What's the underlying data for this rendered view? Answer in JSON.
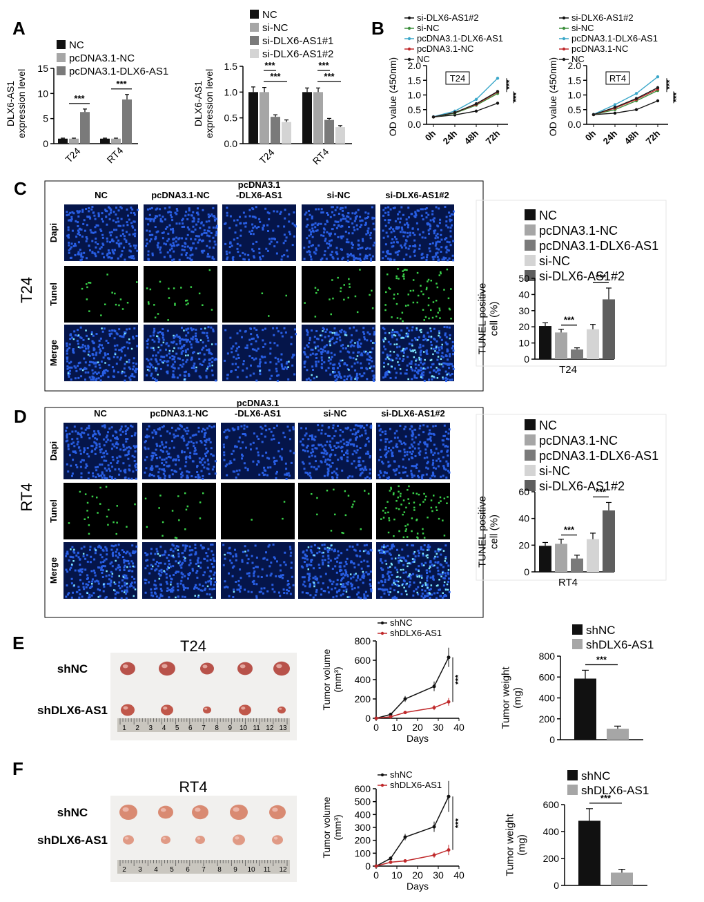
{
  "panels": {
    "A": "A",
    "B": "B",
    "C": "C",
    "D": "D",
    "E": "E",
    "F": "F"
  },
  "colors": {
    "nc": "#111111",
    "g1": "#a6a6a6",
    "g2": "#7a7a7a",
    "g3": "#d4d4d4",
    "g4": "#5e5e5e",
    "si_dlx": "#111111",
    "si_nc": "#3c8f3c",
    "pc_dlx": "#3aa7c9",
    "pc_nc": "#c0292b",
    "nc_line": "#1a1a1a",
    "shNC": "#111111",
    "shDLX": "#c0292b",
    "sh_weight_ctrl": "#111111",
    "sh_weight_kd": "#a6a6a6"
  },
  "panel_A": {
    "chart_data": [
      {
        "type": "bar",
        "ylabel": "DLX6-AS1\nexpression level",
        "ylim": [
          0,
          15
        ],
        "yticks": [
          0,
          5,
          10,
          15
        ],
        "categories": [
          "T24",
          "RT4"
        ],
        "series": [
          {
            "name": "NC",
            "values": [
              1,
              1
            ]
          },
          {
            "name": "pcDNA3.1-NC",
            "values": [
              1.0,
              1.0
            ]
          },
          {
            "name": "pcDNA3.1-DLX6-AS1",
            "values": [
              6.3,
              8.8
            ]
          }
        ],
        "errors": [
          [
            0.1,
            0.1
          ],
          [
            0.1,
            0.1
          ],
          [
            0.6,
            1.0
          ]
        ],
        "significance": [
          "***",
          "***"
        ]
      },
      {
        "type": "bar",
        "ylabel": "DLX6-AS1\nexpression level",
        "ylim": [
          0,
          1.5
        ],
        "yticks": [
          0.0,
          0.5,
          1.0,
          1.5
        ],
        "categories": [
          "T24",
          "RT4"
        ],
        "series": [
          {
            "name": "NC",
            "values": [
              1.0,
              1.0
            ]
          },
          {
            "name": "si-NC",
            "values": [
              1.0,
              1.0
            ]
          },
          {
            "name": "si-DLX6-AS1#1",
            "values": [
              0.52,
              0.46
            ]
          },
          {
            "name": "si-DLX6-AS1#2",
            "values": [
              0.42,
              0.32
            ]
          }
        ],
        "errors": [
          [
            0.1,
            0.08
          ],
          [
            0.09,
            0.08
          ],
          [
            0.04,
            0.03
          ],
          [
            0.04,
            0.03
          ]
        ],
        "significance": [
          "***",
          "***",
          "***",
          "***"
        ]
      }
    ]
  },
  "panel_B": {
    "chart_data": [
      {
        "type": "line",
        "title": "T24",
        "ylabel": "OD value (450nm)",
        "xticks": [
          "0h",
          "24h",
          "48h",
          "72h"
        ],
        "ylim": [
          0,
          2.0
        ],
        "yticks": [
          0.0,
          0.5,
          1.0,
          1.5,
          2.0
        ],
        "series": [
          {
            "name": "si-DLX6-AS1#2",
            "values": [
              0.25,
              0.32,
              0.45,
              0.72
            ]
          },
          {
            "name": "si-NC",
            "values": [
              0.25,
              0.38,
              0.65,
              1.05
            ]
          },
          {
            "name": "pcDNA3.1-DLX6-AS1",
            "values": [
              0.26,
              0.45,
              0.85,
              1.57
            ]
          },
          {
            "name": "pcDNA3.1-NC",
            "values": [
              0.25,
              0.4,
              0.68,
              1.1
            ]
          },
          {
            "name": "NC",
            "values": [
              0.25,
              0.4,
              0.7,
              1.12
            ]
          }
        ],
        "significance": [
          "***",
          "***"
        ]
      },
      {
        "type": "line",
        "title": "RT4",
        "ylabel": "OD value (450nm)",
        "xticks": [
          "0h",
          "24h",
          "48h",
          "72h"
        ],
        "ylim": [
          0,
          2.0
        ],
        "yticks": [
          0.0,
          0.5,
          1.0,
          1.5,
          2.0
        ],
        "series": [
          {
            "name": "si-DLX6-AS1#2",
            "values": [
              0.33,
              0.38,
              0.5,
              0.8
            ]
          },
          {
            "name": "si-NC",
            "values": [
              0.33,
              0.5,
              0.8,
              1.15
            ]
          },
          {
            "name": "pcDNA3.1-DLX6-AS1",
            "values": [
              0.34,
              0.67,
              1.05,
              1.62
            ]
          },
          {
            "name": "pcDNA3.1-NC",
            "values": [
              0.33,
              0.55,
              0.85,
              1.2
            ]
          },
          {
            "name": "NC",
            "values": [
              0.33,
              0.58,
              0.88,
              1.25
            ]
          }
        ],
        "significance": [
          "***",
          "***"
        ]
      }
    ]
  },
  "panel_C": {
    "row_title": "T24",
    "columns": [
      "NC",
      "pcDNA3.1-NC",
      "pcDNA3.1\n-DLX6-AS1",
      "si-NC",
      "si-DLX6-AS1#2"
    ],
    "rows": [
      "Dapi",
      "Tunel",
      "Merge"
    ],
    "tunel_density": [
      6,
      8,
      1,
      8,
      24
    ],
    "chart_data": {
      "type": "bar",
      "ylabel": "TUNEL positive\ncell (%)",
      "xlabel": "T24",
      "ylim": [
        0,
        50
      ],
      "yticks": [
        0,
        10,
        20,
        30,
        40,
        50
      ],
      "categories": [
        "NC",
        "pcDNA3.1-NC",
        "pcDNA3.1-DLX6-AS1",
        "si-NC",
        "si-DLX6-AS1#2"
      ],
      "values": [
        20.5,
        16.5,
        6,
        18.5,
        37
      ],
      "errors": [
        2,
        2,
        1,
        3,
        7
      ],
      "significance": [
        "***",
        "***"
      ]
    }
  },
  "panel_D": {
    "row_title": "RT4",
    "columns": [
      "NC",
      "pcDNA3.1-NC",
      "pcDNA3.1\n-DLX6-AS1",
      "si-NC",
      "si-DLX6-AS1#2"
    ],
    "rows": [
      "Dapi",
      "Tunel",
      "Merge"
    ],
    "tunel_density": [
      8,
      6,
      1,
      6,
      26
    ],
    "chart_data": {
      "type": "bar",
      "ylabel": "TUNEL positive\ncell (%)",
      "xlabel": "RT4",
      "ylim": [
        0,
        60
      ],
      "yticks": [
        0,
        20,
        40,
        60
      ],
      "categories": [
        "NC",
        "pcDNA3.1-NC",
        "pcDNA3.1-DLX6-AS1",
        "si-NC",
        "si-DLX6-AS1#2"
      ],
      "values": [
        19.5,
        21,
        10,
        24.5,
        46
      ],
      "errors": [
        2.5,
        3.5,
        2.5,
        4.5,
        6
      ],
      "significance": [
        "***",
        "***"
      ]
    }
  },
  "panel_E": {
    "photo_title": "T24",
    "row_labels": [
      "shNC",
      "shDLX6-AS1"
    ],
    "ruler_ticks": [
      "1",
      "2",
      "3",
      "4",
      "5",
      "6",
      "7",
      "8",
      "9",
      "10",
      "11",
      "12",
      "13"
    ],
    "volume_chart": {
      "type": "line",
      "ylabel": "Tumor volume\n(mm3)",
      "xlabel": "Days",
      "xlim": [
        0,
        40
      ],
      "xticks": [
        0,
        10,
        20,
        30,
        40
      ],
      "ylim": [
        0,
        800
      ],
      "yticks": [
        0,
        200,
        400,
        600,
        800
      ],
      "series": [
        {
          "name": "shNC",
          "x": [
            0,
            7,
            14,
            28,
            35
          ],
          "values": [
            0,
            40,
            200,
            330,
            630
          ],
          "errors": [
            0,
            10,
            30,
            50,
            100
          ]
        },
        {
          "name": "shDLX6-AS1",
          "x": [
            0,
            7,
            14,
            28,
            35
          ],
          "values": [
            0,
            15,
            60,
            110,
            170
          ],
          "errors": [
            0,
            5,
            15,
            25,
            40
          ]
        }
      ],
      "significance": "***"
    },
    "weight_chart": {
      "type": "bar",
      "ylabel": "Tumor weight\n(mg)",
      "ylim": [
        0,
        800
      ],
      "yticks": [
        0,
        200,
        400,
        600,
        800
      ],
      "categories": [
        "shNC",
        "shDLX6-AS1"
      ],
      "values": [
        585,
        105
      ],
      "errors": [
        80,
        25
      ],
      "significance": "***"
    }
  },
  "panel_F": {
    "photo_title": "RT4",
    "row_labels": [
      "shNC",
      "shDLX6-AS1"
    ],
    "ruler_ticks": [
      "2",
      "3",
      "4",
      "5",
      "6",
      "7",
      "8",
      "9",
      "10",
      "11",
      "12"
    ],
    "volume_chart": {
      "type": "line",
      "ylabel": "Tumor volume\n(mm3)",
      "xlabel": "Days",
      "xlim": [
        0,
        40
      ],
      "xticks": [
        0,
        10,
        20,
        30,
        40
      ],
      "ylim": [
        0,
        600
      ],
      "yticks": [
        0,
        100,
        200,
        300,
        400,
        500,
        600
      ],
      "series": [
        {
          "name": "shNC",
          "x": [
            0,
            7,
            14,
            28,
            35
          ],
          "values": [
            0,
            60,
            225,
            305,
            540
          ],
          "errors": [
            0,
            15,
            25,
            40,
            120
          ]
        },
        {
          "name": "shDLX6-AS1",
          "x": [
            0,
            7,
            14,
            28,
            35
          ],
          "values": [
            0,
            30,
            40,
            85,
            125
          ],
          "errors": [
            0,
            8,
            10,
            20,
            40
          ]
        }
      ],
      "significance": "***"
    },
    "weight_chart": {
      "type": "bar",
      "ylabel": "Tumor weight\n(mg)",
      "ylim": [
        0,
        600
      ],
      "yticks": [
        0,
        200,
        400,
        600
      ],
      "categories": [
        "shNC",
        "shDLX6-AS1"
      ],
      "values": [
        480,
        95
      ],
      "errors": [
        90,
        25
      ],
      "significance": "***"
    }
  }
}
